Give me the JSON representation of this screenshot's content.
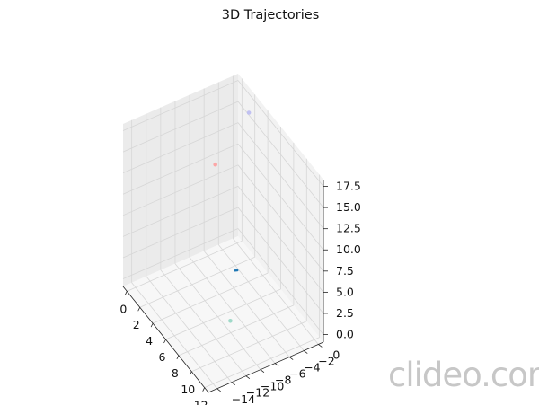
{
  "chart_data": {
    "type": "scatter3d",
    "title": "3D Trajectories",
    "xlabel": "",
    "ylabel": "",
    "zlabel": "",
    "xlim": [
      -0.6,
      12.6
    ],
    "ylim": [
      -15.2,
      0.7
    ],
    "zlim": [
      -0.9,
      18.3
    ],
    "x_ticks": [
      "0",
      "2",
      "4",
      "6",
      "8",
      "10",
      "12"
    ],
    "y_ticks": [
      "0",
      "−2",
      "−4",
      "−6",
      "−8",
      "−10",
      "−12",
      "−14"
    ],
    "z_ticks": [
      "0.0",
      "2.5",
      "5.0",
      "7.5",
      "10.0",
      "12.5",
      "15.0",
      "17.5"
    ],
    "grid": true,
    "series": [
      {
        "color": "#1f77b4",
        "values": [
          {
            "x": 7.5,
            "y": -7.0,
            "z": 5.6
          },
          {
            "x": 7.7,
            "y": -7.0,
            "z": 5.8
          },
          {
            "x": 7.9,
            "y": -7.0,
            "z": 6.0
          }
        ]
      },
      {
        "color": "#ff9a9a",
        "values": [
          {
            "x": 0.7,
            "y": -3.6,
            "z": 10.4
          }
        ]
      },
      {
        "color": "#b9b9f2",
        "values": [
          {
            "x": 3.2,
            "y": -1.2,
            "z": 18.0
          }
        ]
      },
      {
        "color": "#8fd3c0",
        "values": [
          {
            "x": 10.4,
            "y": -10.2,
            "z": 3.6
          }
        ]
      }
    ]
  },
  "watermark": "clideo.com"
}
